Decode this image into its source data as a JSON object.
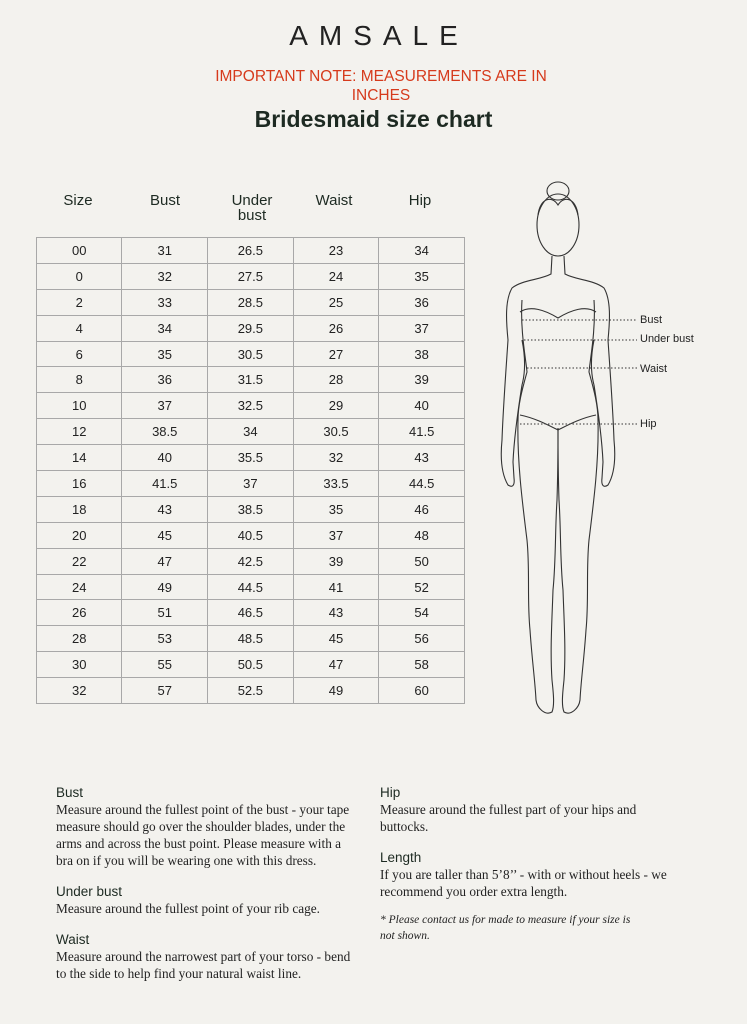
{
  "header": {
    "logo": "AMSALE",
    "note": "IMPORTANT NOTE: MEASUREMENTS ARE IN INCHES",
    "title": "Bridesmaid size chart"
  },
  "table": {
    "columns": [
      "Size",
      "Bust",
      "Under bust",
      "Waist",
      "Hip"
    ],
    "rows": [
      [
        "00",
        "31",
        "26.5",
        "23",
        "34"
      ],
      [
        "0",
        "32",
        "27.5",
        "24",
        "35"
      ],
      [
        "2",
        "33",
        "28.5",
        "25",
        "36"
      ],
      [
        "4",
        "34",
        "29.5",
        "26",
        "37"
      ],
      [
        "6",
        "35",
        "30.5",
        "27",
        "38"
      ],
      [
        "8",
        "36",
        "31.5",
        "28",
        "39"
      ],
      [
        "10",
        "37",
        "32.5",
        "29",
        "40"
      ],
      [
        "12",
        "38.5",
        "34",
        "30.5",
        "41.5"
      ],
      [
        "14",
        "40",
        "35.5",
        "32",
        "43"
      ],
      [
        "16",
        "41.5",
        "37",
        "33.5",
        "44.5"
      ],
      [
        "18",
        "43",
        "38.5",
        "35",
        "46"
      ],
      [
        "20",
        "45",
        "40.5",
        "37",
        "48"
      ],
      [
        "22",
        "47",
        "42.5",
        "39",
        "50"
      ],
      [
        "24",
        "49",
        "44.5",
        "41",
        "52"
      ],
      [
        "26",
        "51",
        "46.5",
        "43",
        "54"
      ],
      [
        "28",
        "53",
        "48.5",
        "45",
        "56"
      ],
      [
        "30",
        "55",
        "50.5",
        "47",
        "58"
      ],
      [
        "32",
        "57",
        "52.5",
        "49",
        "60"
      ]
    ]
  },
  "figure": {
    "labels": [
      "Bust",
      "Under bust",
      "Waist",
      "Hip"
    ]
  },
  "guide": {
    "left": [
      {
        "heading": "Bust",
        "text": "Measure around the fullest point of the bust - your tape measure should go over the shoulder blades, under the arms and across the bust point. Please measure with a bra on if you will be wearing one with this dress."
      },
      {
        "heading": "Under bust",
        "text": "Measure around the fullest point of your rib cage."
      },
      {
        "heading": "Waist",
        "text": "Measure around the narrowest part of your torso - bend to the side to help find your natural waist line."
      }
    ],
    "right": [
      {
        "heading": "Hip",
        "text": "Measure around the fullest part of your hips and buttocks."
      },
      {
        "heading": "Length",
        "text": "If you are taller than 5’8’’ - with or without heels - we recommend you order extra length."
      }
    ],
    "footnote": "* Please contact us for made to measure if your size is not shown."
  }
}
